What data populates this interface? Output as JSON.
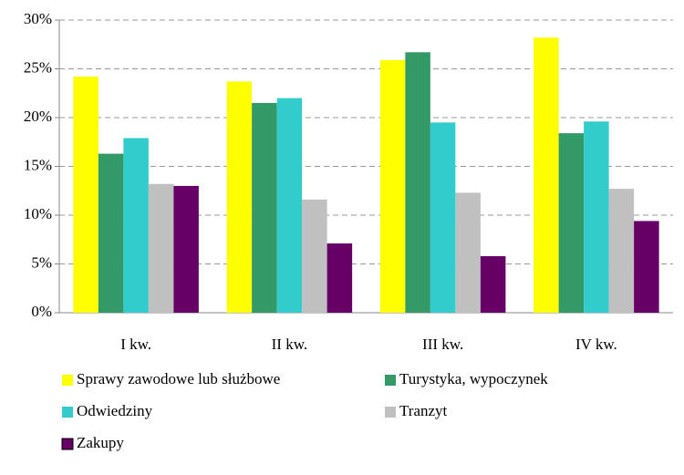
{
  "chart_data": {
    "type": "bar",
    "categories": [
      "I kw.",
      "II kw.",
      "III kw.",
      "IV kw."
    ],
    "series": [
      {
        "name": "Sprawy zawodowe lub służbowe",
        "color": "#ffff00",
        "values": [
          24.2,
          23.7,
          25.9,
          28.2
        ]
      },
      {
        "name": "Turystyka, wypoczynek",
        "color": "#339966",
        "values": [
          16.3,
          21.5,
          26.7,
          18.4
        ]
      },
      {
        "name": "Odwiedziny",
        "color": "#33cccc",
        "values": [
          17.9,
          22.0,
          19.5,
          19.6
        ]
      },
      {
        "name": "Tranzyt",
        "color": "#c0c0c0",
        "values": [
          13.2,
          11.6,
          12.3,
          12.7
        ]
      },
      {
        "name": "Zakupy",
        "color": "#660066",
        "values": [
          13.0,
          7.1,
          5.8,
          9.4
        ]
      }
    ],
    "ylim": [
      0,
      30
    ],
    "yticks": [
      {
        "value": 0,
        "label": "0%"
      },
      {
        "value": 5,
        "label": "5%"
      },
      {
        "value": 10,
        "label": "10%"
      },
      {
        "value": 15,
        "label": "15%"
      },
      {
        "value": 20,
        "label": "20%"
      },
      {
        "value": 25,
        "label": "25%"
      },
      {
        "value": 30,
        "label": "30%"
      }
    ],
    "grid": true,
    "legend": "bottom"
  }
}
